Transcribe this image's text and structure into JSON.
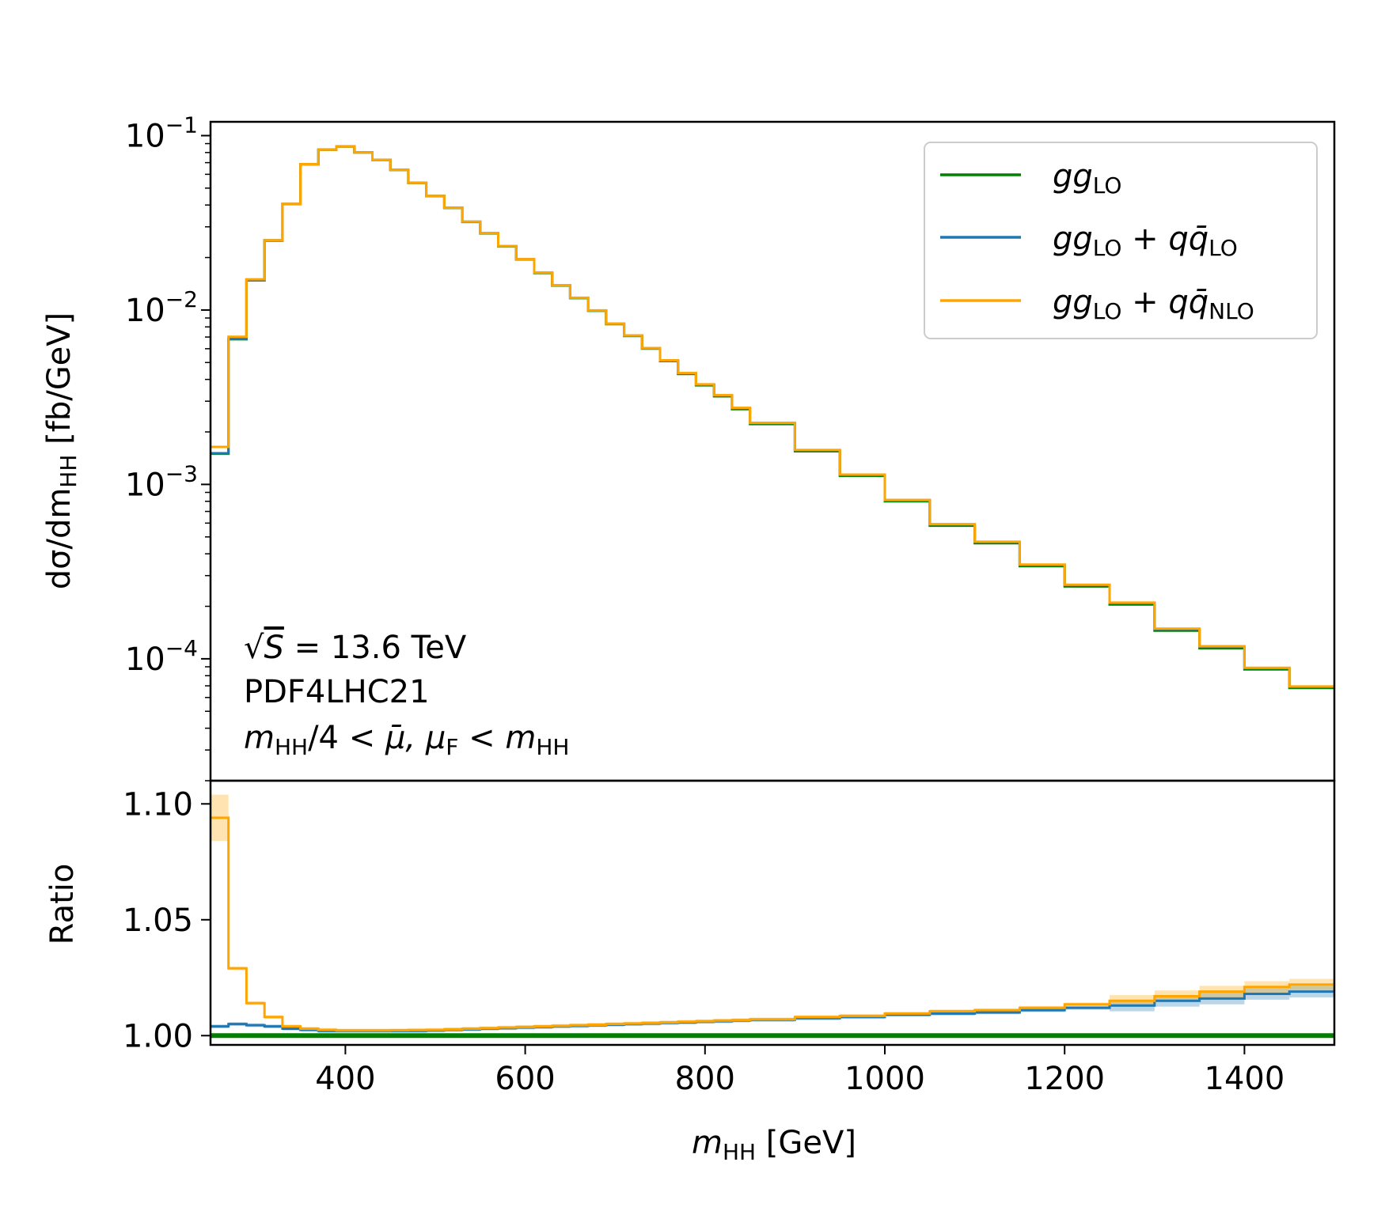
{
  "chart_data": [
    {
      "type": "line",
      "subtype": "step",
      "yscale": "log",
      "ylabel": "dσ/dm_HH [fb/GeV]",
      "xlim": [
        250,
        1500
      ],
      "ylim": [
        2e-05,
        0.12
      ],
      "y_ticks": [
        {
          "exp": "−1",
          "value": 0.1
        },
        {
          "exp": "−2",
          "value": 0.01
        },
        {
          "exp": "−3",
          "value": 0.001
        },
        {
          "exp": "−4",
          "value": 0.0001
        }
      ],
      "tick_base": "10",
      "bin_edges": [
        250,
        270,
        290,
        310,
        330,
        350,
        370,
        390,
        410,
        430,
        450,
        470,
        490,
        510,
        530,
        550,
        570,
        590,
        610,
        630,
        650,
        670,
        690,
        710,
        730,
        750,
        770,
        790,
        810,
        830,
        850,
        900,
        950,
        1000,
        1050,
        1100,
        1150,
        1200,
        1250,
        1300,
        1350,
        1400,
        1450,
        1500
      ],
      "series": [
        {
          "name": "gg_LO",
          "color": "#008000",
          "values": [
            0.0015,
            0.0068,
            0.0148,
            0.025,
            0.0405,
            0.0685,
            0.083,
            0.0865,
            0.08,
            0.0725,
            0.0635,
            0.0535,
            0.045,
            0.0385,
            0.032,
            0.0275,
            0.0232,
            0.0195,
            0.0163,
            0.0138,
            0.0117,
            0.0099,
            0.0083,
            0.0071,
            0.006,
            0.0051,
            0.0043,
            0.0037,
            0.0032,
            0.0027,
            0.00222,
            0.00155,
            0.00112,
            0.0008,
            0.00058,
            0.00046,
            0.00034,
            0.00026,
            0.000205,
            0.000145,
            0.000115,
            8.7e-05,
            6.8e-05
          ]
        },
        {
          "name": "gg_LO + qq̄_LO",
          "color": "#1f77b4",
          "values": [
            0.00151,
            0.00683,
            0.0149,
            0.0251,
            0.0406,
            0.0686,
            0.0831,
            0.0866,
            0.0801,
            0.0726,
            0.0636,
            0.0536,
            0.0451,
            0.0386,
            0.0321,
            0.02757,
            0.02327,
            0.01956,
            0.01636,
            0.01385,
            0.01175,
            0.00994,
            0.00834,
            0.00714,
            0.00604,
            0.00514,
            0.00434,
            0.00374,
            0.00324,
            0.00274,
            0.002252,
            0.001574,
            0.001138,
            0.000813,
            0.00059,
            0.000468,
            0.000346,
            0.000265,
            0.000209,
            0.000148,
            0.000117,
            8.86e-05,
            6.93e-05
          ]
        },
        {
          "name": "gg_LO + qq̄_NLO",
          "color": "#ffa500",
          "values": [
            0.00164,
            0.00702,
            0.015,
            0.0251,
            0.0406,
            0.0686,
            0.0831,
            0.0866,
            0.0801,
            0.0726,
            0.0636,
            0.0536,
            0.0451,
            0.0386,
            0.0321,
            0.02758,
            0.02328,
            0.01957,
            0.01637,
            0.01386,
            0.01176,
            0.00995,
            0.00835,
            0.00715,
            0.00605,
            0.00515,
            0.00435,
            0.00375,
            0.00325,
            0.00275,
            0.002253,
            0.001575,
            0.001139,
            0.000814,
            0.000591,
            0.000469,
            0.000347,
            0.000266,
            0.00021,
            0.000149,
            0.000118,
            8.88e-05,
            6.94e-05
          ]
        }
      ]
    },
    {
      "type": "line",
      "subtype": "step",
      "ylabel": "Ratio",
      "xlabel": "m_HH [GeV]",
      "xlim": [
        250,
        1500
      ],
      "ylim": [
        0.996,
        1.11
      ],
      "y_ticks": [
        "1.00",
        "1.05",
        "1.10"
      ],
      "x_ticks": [
        "400",
        "600",
        "800",
        "1000",
        "1200",
        "1400"
      ],
      "bin_edges": [
        250,
        270,
        290,
        310,
        330,
        350,
        370,
        390,
        410,
        430,
        450,
        470,
        490,
        510,
        530,
        550,
        570,
        590,
        610,
        630,
        650,
        670,
        690,
        710,
        730,
        750,
        770,
        790,
        810,
        830,
        850,
        900,
        950,
        1000,
        1050,
        1100,
        1150,
        1200,
        1250,
        1300,
        1350,
        1400,
        1450,
        1500
      ],
      "series": [
        {
          "name": "gg_LO",
          "color": "#008000",
          "values": [
            1.0,
            1.0,
            1.0,
            1.0,
            1.0,
            1.0,
            1.0,
            1.0,
            1.0,
            1.0,
            1.0,
            1.0,
            1.0,
            1.0,
            1.0,
            1.0,
            1.0,
            1.0,
            1.0,
            1.0,
            1.0,
            1.0,
            1.0,
            1.0,
            1.0,
            1.0,
            1.0,
            1.0,
            1.0,
            1.0,
            1.0,
            1.0,
            1.0,
            1.0,
            1.0,
            1.0,
            1.0,
            1.0,
            1.0,
            1.0,
            1.0,
            1.0,
            1.0
          ]
        },
        {
          "name": "gg_LO + qq̄_LO",
          "color": "#1f77b4",
          "values": [
            1.004,
            1.005,
            1.0045,
            1.004,
            1.003,
            1.0025,
            1.002,
            1.002,
            1.002,
            1.002,
            1.002,
            1.002,
            1.0022,
            1.0025,
            1.0027,
            1.003,
            1.0032,
            1.0035,
            1.0037,
            1.004,
            1.0042,
            1.0045,
            1.0047,
            1.005,
            1.0052,
            1.0055,
            1.0057,
            1.006,
            1.0062,
            1.0065,
            1.0068,
            1.0075,
            1.008,
            1.009,
            1.0095,
            1.01,
            1.011,
            1.012,
            1.013,
            1.015,
            1.016,
            1.018,
            1.019
          ]
        },
        {
          "name": "gg_LO + qq̄_NLO",
          "color": "#ffa500",
          "values": [
            1.094,
            1.029,
            1.014,
            1.008,
            1.004,
            1.003,
            1.0025,
            1.0022,
            1.0022,
            1.0022,
            1.0023,
            1.0024,
            1.0025,
            1.0027,
            1.003,
            1.0032,
            1.0035,
            1.0037,
            1.004,
            1.0042,
            1.0045,
            1.0047,
            1.005,
            1.0052,
            1.0055,
            1.0057,
            1.006,
            1.0062,
            1.0065,
            1.0067,
            1.007,
            1.008,
            1.0085,
            1.0095,
            1.0105,
            1.011,
            1.012,
            1.0135,
            1.015,
            1.017,
            1.019,
            1.021,
            1.022
          ]
        }
      ]
    }
  ],
  "legend": {
    "entries": [
      {
        "color": "#008000",
        "base": "gg",
        "sub": "LO",
        "plus": "",
        "qbase": "",
        "qsub": ""
      },
      {
        "color": "#1f77b4",
        "base": "gg",
        "sub": "LO",
        "plus": " + ",
        "qbase": "qq̄",
        "qsub": "LO"
      },
      {
        "color": "#ffa500",
        "base": "gg",
        "sub": "LO",
        "plus": " + ",
        "qbase": "qq̄",
        "qsub": "NLO"
      }
    ]
  },
  "annotations": {
    "line1_sqrt": "√",
    "line1_s": "S",
    "line1_rest": " = 13.6 TeV",
    "line2": "PDF4LHC21",
    "line3_m": "m",
    "line3_sub": "HH",
    "line3_mid": "/4 < ",
    "line3_mu": "μ̄",
    "line3_comma": ", μ",
    "line3_F": "F",
    "line3_lt": " < m",
    "line3_sub2": "HH"
  },
  "axes": {
    "y_main_label": "dσ/dm",
    "y_main_sub": "HH",
    "y_main_unit": " [fb/GeV]",
    "y_ratio_label": "Ratio",
    "x_label_m": "m",
    "x_label_sub": "HH",
    "x_label_unit": " [GeV]"
  }
}
